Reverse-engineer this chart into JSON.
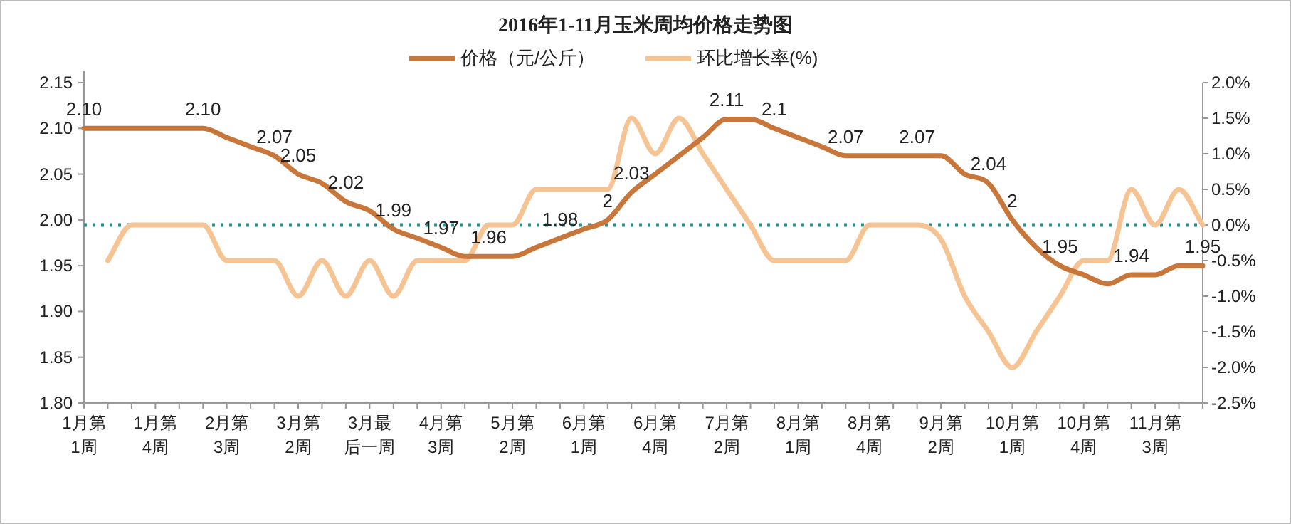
{
  "chart_data": {
    "type": "line",
    "title": "2016年1-11月玉米周均价格走势图",
    "categories": [
      "1月第1周",
      null,
      null,
      "1月第4周",
      null,
      null,
      "2月第3周",
      null,
      null,
      "3月第2周",
      null,
      null,
      "3月最后一周",
      null,
      null,
      "4月第3周",
      null,
      null,
      "5月第2周",
      null,
      null,
      "6月第1周",
      null,
      null,
      "6月第4周",
      null,
      null,
      "7月第2周",
      null,
      null,
      "8月第1周",
      null,
      null,
      "8月第4周",
      null,
      null,
      "9月第2周",
      null,
      null,
      "10月第1周",
      null,
      null,
      "10月第4周",
      null,
      null,
      "11月第3周",
      null,
      null
    ],
    "series": [
      {
        "name": "价格（元/公斤）",
        "color": "#c8763a",
        "values": [
          2.1,
          2.1,
          2.1,
          2.1,
          2.1,
          2.1,
          2.09,
          2.08,
          2.07,
          2.05,
          2.04,
          2.02,
          2.01,
          1.99,
          1.98,
          1.97,
          1.96,
          1.96,
          1.96,
          1.97,
          1.98,
          1.99,
          2.0,
          2.03,
          2.05,
          2.07,
          2.09,
          2.11,
          2.11,
          2.1,
          2.09,
          2.08,
          2.07,
          2.07,
          2.07,
          2.07,
          2.07,
          2.05,
          2.04,
          2.0,
          1.97,
          1.95,
          1.94,
          1.93,
          1.94,
          1.94,
          1.95,
          1.95
        ],
        "value_labels": [
          "2.10",
          null,
          null,
          null,
          null,
          "2.10",
          null,
          null,
          "2.07",
          "2.05",
          null,
          "2.02",
          null,
          "1.99",
          null,
          "1.97",
          null,
          "1.96",
          null,
          null,
          "1.98",
          null,
          "2",
          "2.03",
          null,
          null,
          null,
          "2.11",
          null,
          "2.1",
          null,
          null,
          "2.07",
          null,
          null,
          "2.07",
          null,
          null,
          "2.04",
          "2",
          null,
          "1.95",
          null,
          null,
          "1.94",
          null,
          null,
          "1.95"
        ]
      },
      {
        "name": "环比增长率(%)",
        "color": "#f6c393",
        "axis": "y2",
        "values": [
          null,
          -0.5,
          0.0,
          0.0,
          0.0,
          0.0,
          -0.5,
          -0.5,
          -0.5,
          -1.0,
          -0.5,
          -1.0,
          -0.5,
          -1.0,
          -0.5,
          -0.5,
          -0.5,
          0.0,
          0.0,
          0.5,
          0.5,
          0.5,
          0.5,
          1.5,
          1.0,
          1.5,
          1.0,
          0.5,
          0.0,
          -0.5,
          -0.5,
          -0.5,
          -0.5,
          0.0,
          0.0,
          0.0,
          -0.2,
          -1.0,
          -1.5,
          -2.0,
          -1.5,
          -1.0,
          -0.5,
          -0.5,
          0.5,
          0.0,
          0.5,
          0.0
        ]
      }
    ],
    "ylim": [
      1.8,
      2.15
    ],
    "yticks": [
      {
        "value": 1.8,
        "label": "1.80"
      },
      {
        "value": 1.85,
        "label": "1.85"
      },
      {
        "value": 1.9,
        "label": "1.90"
      },
      {
        "value": 1.95,
        "label": "1.95"
      },
      {
        "value": 2.0,
        "label": "2.00"
      },
      {
        "value": 2.05,
        "label": "2.05"
      },
      {
        "value": 2.1,
        "label": "2.10"
      },
      {
        "value": 2.15,
        "label": "2.15"
      }
    ],
    "y2lim": [
      -2.5,
      2.0
    ],
    "y2ticks": [
      {
        "value": -2.5,
        "label": "-2.5%"
      },
      {
        "value": -2.0,
        "label": "-2.0%"
      },
      {
        "value": -1.5,
        "label": "-1.5%"
      },
      {
        "value": -1.0,
        "label": "-1.0%"
      },
      {
        "value": -0.5,
        "label": "-0.5%"
      },
      {
        "value": 0.0,
        "label": "0.0%"
      },
      {
        "value": 0.5,
        "label": "0.5%"
      },
      {
        "value": 1.0,
        "label": "1.0%"
      },
      {
        "value": 1.5,
        "label": "1.5%"
      },
      {
        "value": 2.0,
        "label": "2.0%"
      }
    ],
    "ref_lines": [
      {
        "axis": "y2",
        "value": 0,
        "color": "#2f8f8f",
        "line_style": "dotted"
      }
    ],
    "legend": "top"
  }
}
